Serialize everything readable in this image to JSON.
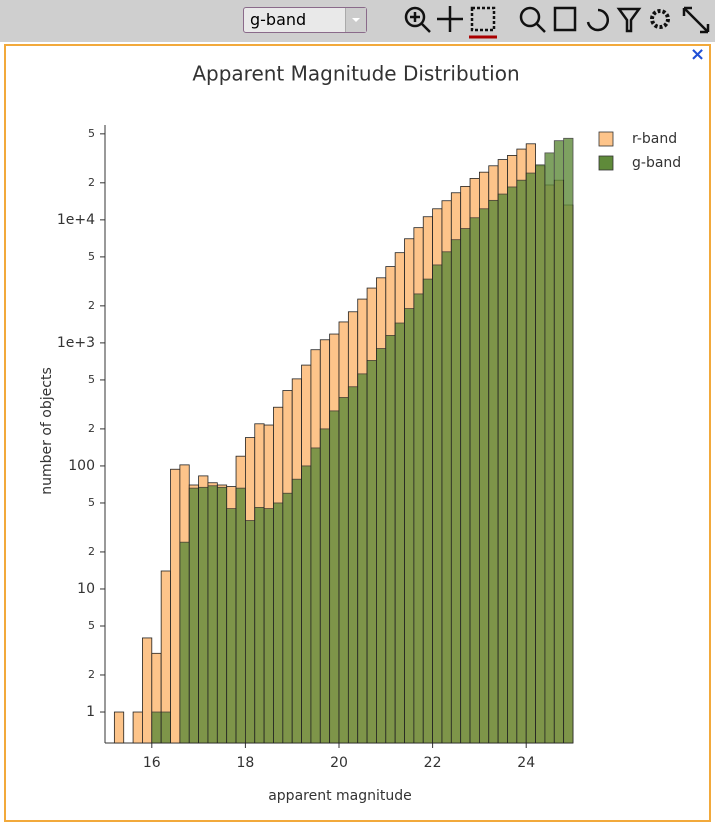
{
  "toolbar": {
    "select": "g-band"
  },
  "chart_data": {
    "type": "histogram",
    "title": "Apparent Magnitude Distribution",
    "x_label": "apparent magnitude",
    "y_label": "number of objects",
    "bins": [
      15,
      15.2,
      15.4,
      15.6,
      15.8,
      16,
      16.2,
      16.4,
      16.6,
      16.8,
      17,
      17.2,
      17.4,
      17.6,
      17.8,
      18,
      18.2,
      18.4,
      18.6,
      18.8,
      19,
      19.2,
      19.4,
      19.6,
      19.8,
      20,
      20.2,
      20.4,
      20.6,
      20.8,
      21,
      21.2,
      21.4,
      21.6,
      21.8,
      22,
      22.2,
      22.4,
      22.6,
      22.8,
      23,
      23.2,
      23.4,
      23.6,
      23.8,
      24,
      24.2,
      24.4,
      24.6,
      24.8,
      25
    ],
    "series": [
      {
        "name": "r-band",
        "color": "#fdc48a",
        "values": [
          0,
          1,
          0,
          1,
          4,
          3,
          14,
          94,
          102,
          70,
          83,
          73,
          70,
          68,
          120,
          170,
          220,
          215,
          300,
          410,
          510,
          660,
          880,
          1060,
          1180,
          1480,
          1790,
          2270,
          2790,
          3380,
          4170,
          5410,
          7020,
          8640,
          10600,
          12300,
          14300,
          16600,
          18700,
          21700,
          24400,
          27500,
          30900,
          33400,
          37600,
          41500,
          27500,
          19200,
          21000,
          13200
        ]
      },
      {
        "name": "g-band",
        "color": "#5f8a3a",
        "values": [
          0,
          0,
          0,
          0,
          0,
          1,
          1,
          0,
          24,
          66,
          67,
          69,
          67,
          45,
          66,
          36,
          46,
          45,
          50,
          60,
          78,
          100,
          140,
          200,
          280,
          360,
          440,
          560,
          720,
          900,
          1150,
          1450,
          1900,
          2500,
          3300,
          4300,
          5500,
          6900,
          8500,
          10400,
          12300,
          14400,
          16200,
          18500,
          21000,
          24000,
          28000,
          35000,
          44000,
          46000
        ]
      }
    ],
    "xlim": [
      15,
      25
    ],
    "xticks": [
      16,
      18,
      20,
      22,
      24
    ],
    "ylim": [
      0.56,
      59000
    ],
    "log_y": true,
    "yticks": [
      1,
      {
        "value": 2,
        "label": "2"
      },
      {
        "value": 5,
        "label": "5"
      },
      10,
      {
        "value": 20,
        "label": "2"
      },
      {
        "value": 50,
        "label": "5"
      },
      100,
      {
        "value": 200,
        "label": "2"
      },
      {
        "value": 500,
        "label": "5"
      },
      {
        "value": 1000,
        "label": "1e+3"
      },
      {
        "value": 2000,
        "label": "2"
      },
      {
        "value": 5000,
        "label": "5"
      },
      {
        "value": 10000,
        "label": "1e+4"
      },
      {
        "value": 20000,
        "label": "2"
      },
      {
        "value": 50000,
        "label": "5"
      }
    ],
    "legend": "top-right"
  }
}
